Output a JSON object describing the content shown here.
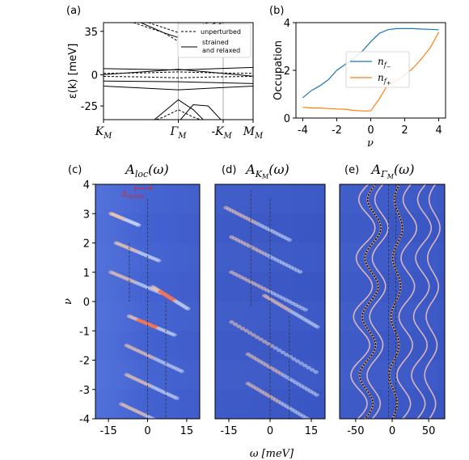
{
  "chart_data": [
    {
      "panel": "(a)",
      "type": "line",
      "ylabel": "ε(k) [meV]",
      "yticks": [
        "35",
        "0",
        "-25"
      ],
      "ytick_values": [
        35,
        0,
        -25
      ],
      "ylim": [
        -36,
        42
      ],
      "xticks": [
        "K_M",
        "Γ_M",
        "-K_M",
        "M_M"
      ],
      "legend": {
        "position": "top-right",
        "entries": [
          "unperturbed",
          "strained and relaxed"
        ],
        "entry2_lines": [
          "strained",
          "and relaxed"
        ]
      },
      "series": [
        {
          "name": "unperturbed",
          "style": "dashed",
          "bands": [
            [
              [
                0,
                1.2
              ],
              [
                0.25,
                1.6
              ],
              [
                0.5,
                2.4
              ],
              [
                0.75,
                1.6
              ],
              [
                1,
                1.2
              ]
            ],
            [
              [
                0,
                -1.2
              ],
              [
                0.25,
                -1.6
              ],
              [
                0.5,
                -2.4
              ],
              [
                0.75,
                -1.6
              ],
              [
                1,
                -1.2
              ]
            ],
            [
              [
                0.2,
                42
              ],
              [
                0.3,
                38
              ],
              [
                0.4,
                34
              ],
              [
                0.5,
                27
              ],
              [
                0.6,
                34
              ],
              [
                0.7,
                38
              ],
              [
                0.8,
                42
              ]
            ],
            [
              [
                0.3,
                42
              ],
              [
                0.45,
                36
              ],
              [
                0.5,
                34
              ],
              [
                0.55,
                36
              ],
              [
                0.7,
                42
              ]
            ],
            [
              [
                0.2,
                -42
              ],
              [
                0.3,
                -38
              ],
              [
                0.4,
                -34
              ],
              [
                0.5,
                -28
              ],
              [
                0.6,
                -34
              ],
              [
                0.7,
                -38
              ],
              [
                0.8,
                -42
              ]
            ]
          ]
        },
        {
          "name": "strained and relaxed",
          "style": "solid",
          "bands": [
            [
              [
                0,
                5
              ],
              [
                0.5,
                4
              ],
              [
                1,
                6
              ]
            ],
            [
              [
                0,
                -5
              ],
              [
                0.5,
                -5.5
              ],
              [
                1,
                -7
              ]
            ],
            [
              [
                0,
                0.3
              ],
              [
                0.5,
                4.5
              ],
              [
                1,
                -1
              ]
            ],
            [
              [
                0.25,
                42
              ],
              [
                0.4,
                34
              ],
              [
                0.5,
                30
              ],
              [
                0.6,
                33
              ],
              [
                0.75,
                42
              ]
            ],
            [
              [
                0.3,
                -40
              ],
              [
                0.45,
                -25
              ],
              [
                0.5,
                -20
              ],
              [
                0.6,
                -28
              ],
              [
                0.7,
                -40
              ]
            ],
            [
              [
                0.5,
                -38
              ],
              [
                0.6,
                -24
              ],
              [
                0.7,
                -25
              ],
              [
                0.8,
                -38
              ]
            ],
            [
              [
                0,
                -9
              ],
              [
                0.5,
                -12
              ],
              [
                1,
                -9
              ]
            ]
          ]
        }
      ]
    },
    {
      "panel": "(b)",
      "type": "line",
      "ylabel": "Occupation",
      "xlabel": "ν",
      "xticks": [
        "-4",
        "-2",
        "0",
        "2",
        "4"
      ],
      "xtick_values": [
        -4,
        -2,
        0,
        2,
        4
      ],
      "yticks": [
        "0",
        "2",
        "4"
      ],
      "ytick_values": [
        0,
        2,
        4
      ],
      "xlim": [
        -4.4,
        4.4
      ],
      "ylim": [
        0,
        4
      ],
      "legend": {
        "position": "center-right",
        "entries": [
          "n_{f-}",
          "n_{f+}"
        ]
      },
      "series": [
        {
          "name": "n_{f-}",
          "color": "#1f77b4",
          "x": [
            -4,
            -3.5,
            -3,
            -2.5,
            -2,
            -1.5,
            -1,
            -0.5,
            0,
            0.5,
            1,
            1.5,
            2,
            2.5,
            3,
            3.5,
            4
          ],
          "y": [
            0.85,
            1.15,
            1.35,
            1.6,
            2.0,
            2.25,
            2.5,
            2.8,
            3.2,
            3.55,
            3.7,
            3.75,
            3.75,
            3.75,
            3.73,
            3.72,
            3.7
          ]
        },
        {
          "name": "n_{f+}",
          "color": "#ff7f0e",
          "x": [
            -4,
            -3.5,
            -3,
            -2.5,
            -2,
            -1.5,
            -1,
            -0.5,
            0,
            0.5,
            1,
            1.5,
            2,
            2.5,
            3,
            3.5,
            4
          ],
          "y": [
            0.45,
            0.42,
            0.42,
            0.4,
            0.38,
            0.37,
            0.32,
            0.3,
            0.3,
            0.8,
            1.4,
            1.55,
            1.8,
            2.1,
            2.5,
            2.95,
            3.6
          ]
        }
      ]
    },
    {
      "panel": "(c)",
      "type": "heatmap",
      "title": "A_loc(ω)",
      "xlabel": "ω [meV]",
      "ylabel": "ν",
      "xticks": [
        "-15",
        "0",
        "15"
      ],
      "xtick_values": [
        -15,
        0,
        15
      ],
      "yticks": [
        "4",
        "3",
        "2",
        "1",
        "0",
        "-1",
        "-2",
        "-3",
        "-4"
      ],
      "ytick_values": [
        4,
        3,
        2,
        1,
        0,
        -1,
        -2,
        -3,
        -4
      ],
      "xlim": [
        -20,
        20
      ],
      "ylim": [
        -4,
        4
      ],
      "annotation": "Δ_strain",
      "vlines": [
        {
          "x": -7,
          "from": 0,
          "to": 2.0
        },
        {
          "x": 0,
          "from": -4,
          "to": 3.5
        },
        {
          "x": 7,
          "from": -4,
          "to": 0
        }
      ],
      "features": [
        {
          "nu": 3,
          "w0": -14,
          "slope": 4.5,
          "len": 11
        },
        {
          "nu": 2,
          "w0": -12,
          "slope": 4.5,
          "len": 17
        },
        {
          "nu": 1,
          "w0": -14,
          "slope": 4.5,
          "len": 20
        },
        {
          "nu": 0.5,
          "w0": 2,
          "slope": 3.0,
          "len": 14,
          "hot": true
        },
        {
          "nu": -0.5,
          "w0": -7,
          "slope": 4.5,
          "len": 18,
          "hot": true
        },
        {
          "nu": -1.5,
          "w0": -8,
          "slope": 4.0,
          "len": 22
        },
        {
          "nu": -2.5,
          "w0": -8,
          "slope": 4.0,
          "len": 20
        },
        {
          "nu": -3.5,
          "w0": -10,
          "slope": 4.0,
          "len": 20
        }
      ]
    },
    {
      "panel": "(d)",
      "type": "heatmap",
      "title": "A_{K_M}(ω)",
      "xticks": [
        "-15",
        "0",
        "15"
      ],
      "xtick_values": [
        -15,
        0,
        15
      ],
      "xlim": [
        -20,
        20
      ],
      "ylim": [
        -4,
        4
      ],
      "vlines": [
        {
          "x": -7,
          "from": -0.2,
          "to": 3.8
        },
        {
          "x": 0,
          "from": -4,
          "to": 3.5
        },
        {
          "x": 7,
          "from": -4,
          "to": -0.5
        }
      ],
      "features": [
        {
          "nu": 3.2,
          "w0": -16,
          "slope": 3.5,
          "len": 24
        },
        {
          "nu": 2.2,
          "w0": -14,
          "slope": 3.5,
          "len": 26
        },
        {
          "nu": 1.0,
          "w0": -14,
          "slope": 3.5,
          "len": 28
        },
        {
          "nu": 0.2,
          "w0": -2,
          "slope": 3.0,
          "len": 20
        },
        {
          "nu": -0.7,
          "w0": -14,
          "slope": 3.0,
          "len": 32
        },
        {
          "nu": -1.8,
          "w0": -8,
          "slope": 3.0,
          "len": 26
        },
        {
          "nu": -2.8,
          "w0": -8,
          "slope": 3.0,
          "len": 24
        }
      ]
    },
    {
      "panel": "(e)",
      "type": "heatmap",
      "title": "A_{Γ_M}(ω)",
      "xticks": [
        "-50",
        "0",
        "50"
      ],
      "xtick_values": [
        -50,
        0,
        50
      ],
      "xlim": [
        -72,
        72
      ],
      "ylim": [
        -4,
        4
      ],
      "vlines": [
        {
          "x": -5,
          "from": -4,
          "to": 4
        },
        {
          "x": 5,
          "from": -4,
          "to": 4
        }
      ],
      "dotted_curves": [
        {
          "base": -30,
          "amp": 10,
          "slope": 4.5
        },
        {
          "base": 5,
          "amp": 6,
          "slope": 3
        }
      ],
      "wavy_curves": [
        {
          "base": -40,
          "amp": 12,
          "slope": 4.5
        },
        {
          "base": -20,
          "amp": 10,
          "slope": 4.5
        },
        {
          "base": 20,
          "amp": 10,
          "slope": 3.5
        },
        {
          "base": 40,
          "amp": 10,
          "slope": 3.5
        },
        {
          "base": 55,
          "amp": 8,
          "slope": 2.5
        }
      ]
    }
  ]
}
